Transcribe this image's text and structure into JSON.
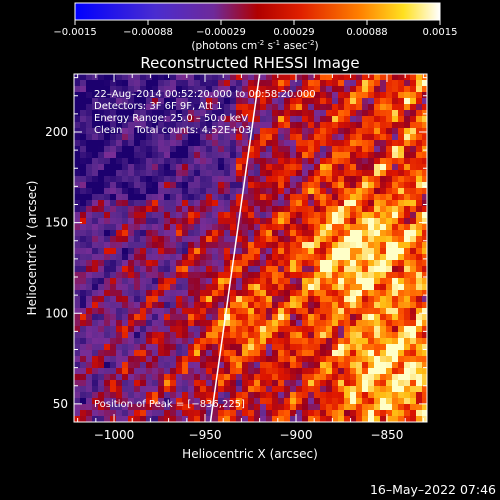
{
  "colorbar": {
    "ticks": [
      "-0.0015",
      "-0.00088",
      "-0.00029",
      "0.00029",
      "0.00088",
      "0.0015"
    ],
    "min": -0.0015,
    "max": 0.0015,
    "units_main": "(photons cm",
    "units_sup1": "-2",
    "units_s": " s",
    "units_sup2": "-1",
    "units_asec": " asec",
    "units_sup3": "-2",
    "units_close": ")",
    "colormap": "blue-violet-red-orange-yellow-white"
  },
  "chart_data": {
    "type": "heatmap",
    "title": "Reconstructed RHESSI Image",
    "xlabel": "Heliocentric X (arcsec)",
    "ylabel": "Heliocentric Y (arcsec)",
    "xlim": [
      -1022,
      -828
    ],
    "ylim": [
      40,
      232
    ],
    "xticks": [
      {
        "value": -1000,
        "label": "−1000"
      },
      {
        "value": -950,
        "label": "−950"
      },
      {
        "value": -900,
        "label": "−900"
      },
      {
        "value": -850,
        "label": "−850"
      }
    ],
    "yticks": [
      {
        "value": 50,
        "label": "50"
      },
      {
        "value": 100,
        "label": "100"
      },
      {
        "value": 150,
        "label": "150"
      },
      {
        "value": 200,
        "label": "200"
      }
    ],
    "limb_line": {
      "x": [
        -947,
        -920
      ],
      "y": [
        40,
        232
      ]
    },
    "annotations": [
      "22–Aug–2014 00:52:20.000 to 00:58:20.000",
      "Detectors: 3F 6F 9F, Att 1",
      "Energy Range: 25.0 – 50.0 keV",
      "Clean    Total counts: 4.52E+03"
    ],
    "peak_label": "Position of Peak = [−836,225]",
    "peak": {
      "x": -836,
      "y": 225
    }
  },
  "footer": {
    "date": "16–May–2022 07:46"
  }
}
